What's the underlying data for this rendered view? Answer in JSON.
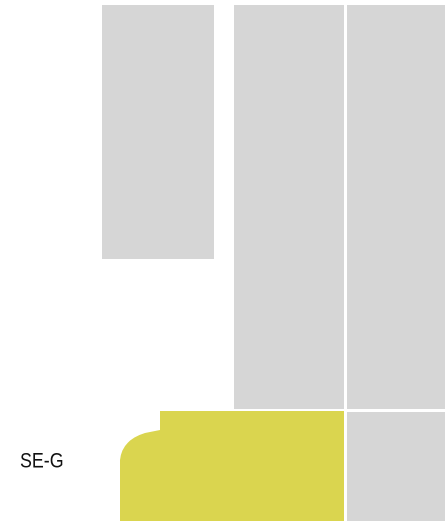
{
  "map": {
    "rooms": [
      {
        "label": "SE-G"
      }
    ]
  }
}
